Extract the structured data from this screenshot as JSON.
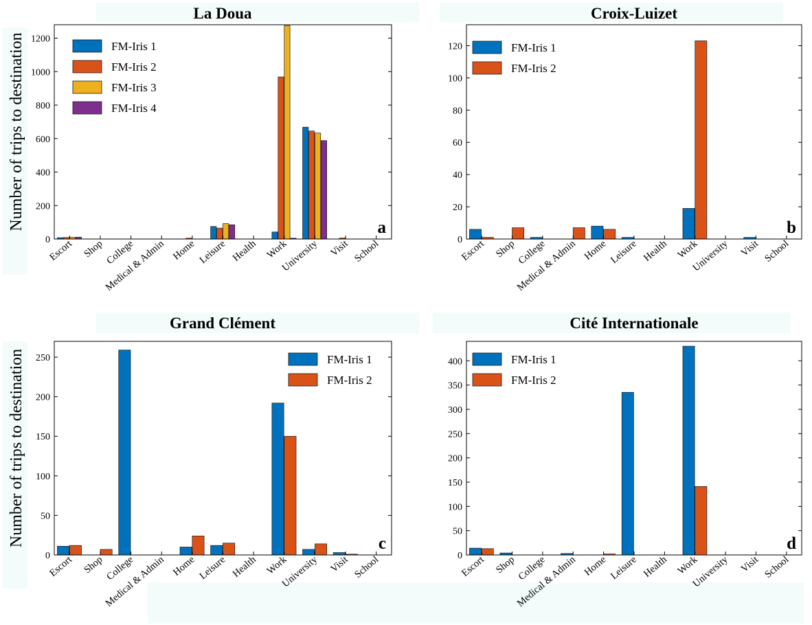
{
  "colors": {
    "FM-Iris 1": "#0072BD",
    "FM-Iris 2": "#D95319",
    "FM-Iris 3": "#EDB120",
    "FM-Iris 4": "#7E2F8E",
    "title_band": "#f3fbfb"
  },
  "chart_data": [
    {
      "type": "bar",
      "title": "La Doua",
      "ylabel": "Number of trips to destination",
      "panel_label": "a",
      "categories": [
        "Escort",
        "Shop",
        "College",
        "Medical & Admin",
        "Home",
        "Leisure",
        "Health",
        "Work",
        "University",
        "Visit",
        "School"
      ],
      "ylim": [
        0,
        1280
      ],
      "yticks": [
        0,
        200,
        400,
        600,
        800,
        1000,
        1200
      ],
      "legend_position": "top-left",
      "series": [
        {
          "name": "FM-Iris 1",
          "values": [
            8,
            0,
            0,
            0,
            0,
            75,
            0,
            42,
            668,
            0,
            0
          ]
        },
        {
          "name": "FM-Iris 2",
          "values": [
            9,
            0,
            0,
            0,
            5,
            65,
            0,
            968,
            645,
            6,
            0
          ]
        },
        {
          "name": "FM-Iris 3",
          "values": [
            10,
            0,
            0,
            0,
            0,
            92,
            0,
            1275,
            633,
            0,
            0
          ]
        },
        {
          "name": "FM-Iris 4",
          "values": [
            11,
            0,
            0,
            0,
            0,
            85,
            0,
            5,
            588,
            0,
            0
          ]
        }
      ]
    },
    {
      "type": "bar",
      "title": "Croix-Luizet",
      "ylabel": "",
      "panel_label": "b",
      "categories": [
        "Escort",
        "Shop",
        "College",
        "Medical & Admin",
        "Home",
        "Leisure",
        "Health",
        "Work",
        "University",
        "Visit",
        "School"
      ],
      "ylim": [
        0,
        133
      ],
      "yticks": [
        0,
        20,
        40,
        60,
        80,
        100,
        120
      ],
      "legend_position": "top-left",
      "series": [
        {
          "name": "FM-Iris 1",
          "values": [
            6,
            0,
            1,
            0,
            8,
            1,
            0,
            19,
            0,
            1,
            0
          ]
        },
        {
          "name": "FM-Iris 2",
          "values": [
            1,
            7,
            0,
            7,
            6,
            0,
            0,
            123,
            0,
            0,
            0
          ]
        }
      ]
    },
    {
      "type": "bar",
      "title": "Grand Clément",
      "ylabel": "Number of trips to destination",
      "panel_label": "c",
      "categories": [
        "Escort",
        "Shop",
        "College",
        "Medical & Admin",
        "Home",
        "Leisure",
        "Health",
        "Work",
        "University",
        "Visit",
        "School"
      ],
      "ylim": [
        0,
        270
      ],
      "yticks": [
        0,
        50,
        100,
        150,
        200,
        250
      ],
      "legend_position": "top-right",
      "series": [
        {
          "name": "FM-Iris 1",
          "values": [
            11,
            0,
            259,
            0,
            10,
            12,
            0,
            192,
            7,
            3,
            0
          ]
        },
        {
          "name": "FM-Iris 2",
          "values": [
            12,
            7,
            0,
            0,
            24,
            15,
            0,
            150,
            14,
            1,
            0
          ]
        }
      ]
    },
    {
      "type": "bar",
      "title": "Cité Internationale",
      "ylabel": "",
      "panel_label": "d",
      "categories": [
        "Escort",
        "Shop",
        "College",
        "Medical & Admin",
        "Home",
        "Leisure",
        "Health",
        "Work",
        "University",
        "Visit",
        "School"
      ],
      "ylim": [
        0,
        440
      ],
      "yticks": [
        0,
        50,
        100,
        150,
        200,
        250,
        300,
        350,
        400
      ],
      "legend_position": "top-left",
      "series": [
        {
          "name": "FM-Iris 1",
          "values": [
            14,
            4,
            0,
            3,
            0,
            335,
            0,
            430,
            0,
            0,
            0
          ]
        },
        {
          "name": "FM-Iris 2",
          "values": [
            13,
            0,
            0,
            0,
            2,
            0,
            0,
            141,
            0,
            0,
            0
          ]
        }
      ]
    }
  ]
}
